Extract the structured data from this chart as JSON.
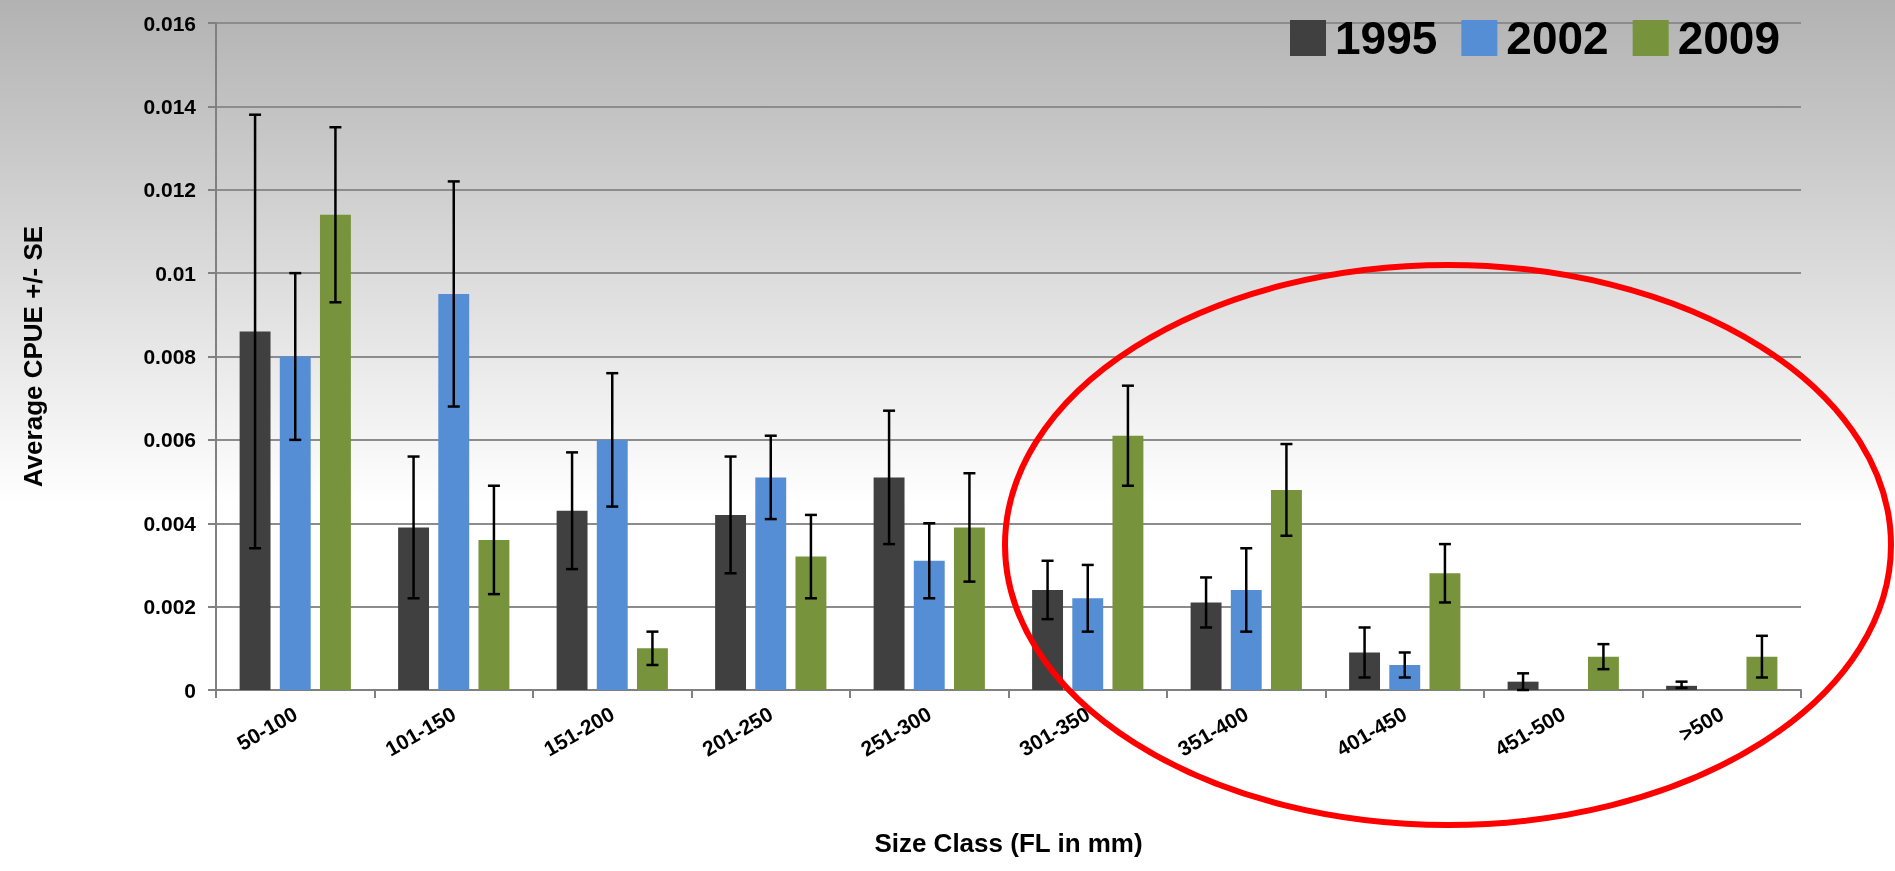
{
  "chart_data": {
    "type": "bar",
    "xlabel": "Size Class (FL in mm)",
    "ylabel": "Average CPUE +/- SE",
    "categories": [
      "50-100",
      "101-150",
      "151-200",
      "201-250",
      "251-300",
      "301-350",
      "351-400",
      "401-450",
      "451-500",
      ">500"
    ],
    "series": [
      {
        "name": "1995",
        "color": "#404040",
        "values": [
          0.0086,
          0.0039,
          0.0043,
          0.0042,
          0.0051,
          0.0024,
          0.0021,
          0.0009,
          0.0002,
          0.0001
        ],
        "errors": [
          0.0052,
          0.0017,
          0.0014,
          0.0014,
          0.0016,
          0.0007,
          0.0006,
          0.0006,
          0.0002,
          [
            5e-05,
            0.0002
          ]
        ]
      },
      {
        "name": "2002",
        "color": "#558ed5",
        "values": [
          0.008,
          0.0095,
          0.006,
          0.0051,
          0.0031,
          0.0022,
          0.0024,
          0.0006,
          null,
          null
        ],
        "errors": [
          0.002,
          0.0027,
          0.0016,
          0.001,
          0.0009,
          0.0008,
          0.001,
          0.0003,
          null,
          null
        ]
      },
      {
        "name": "2009",
        "color": "#77933c",
        "values": [
          0.0114,
          0.0036,
          0.001,
          0.0032,
          0.0039,
          0.0061,
          0.0048,
          0.0028,
          0.0008,
          0.0008
        ],
        "errors": [
          0.0021,
          0.0013,
          0.0004,
          0.001,
          0.0013,
          0.0012,
          0.0011,
          0.0007,
          0.0003,
          0.0005
        ]
      }
    ],
    "ylim": [
      0,
      0.016
    ],
    "yticks": [
      0,
      0.002,
      0.004,
      0.006,
      0.008,
      0.01,
      0.012,
      0.014,
      0.016
    ],
    "grid": "y",
    "legend": "top right"
  }
}
